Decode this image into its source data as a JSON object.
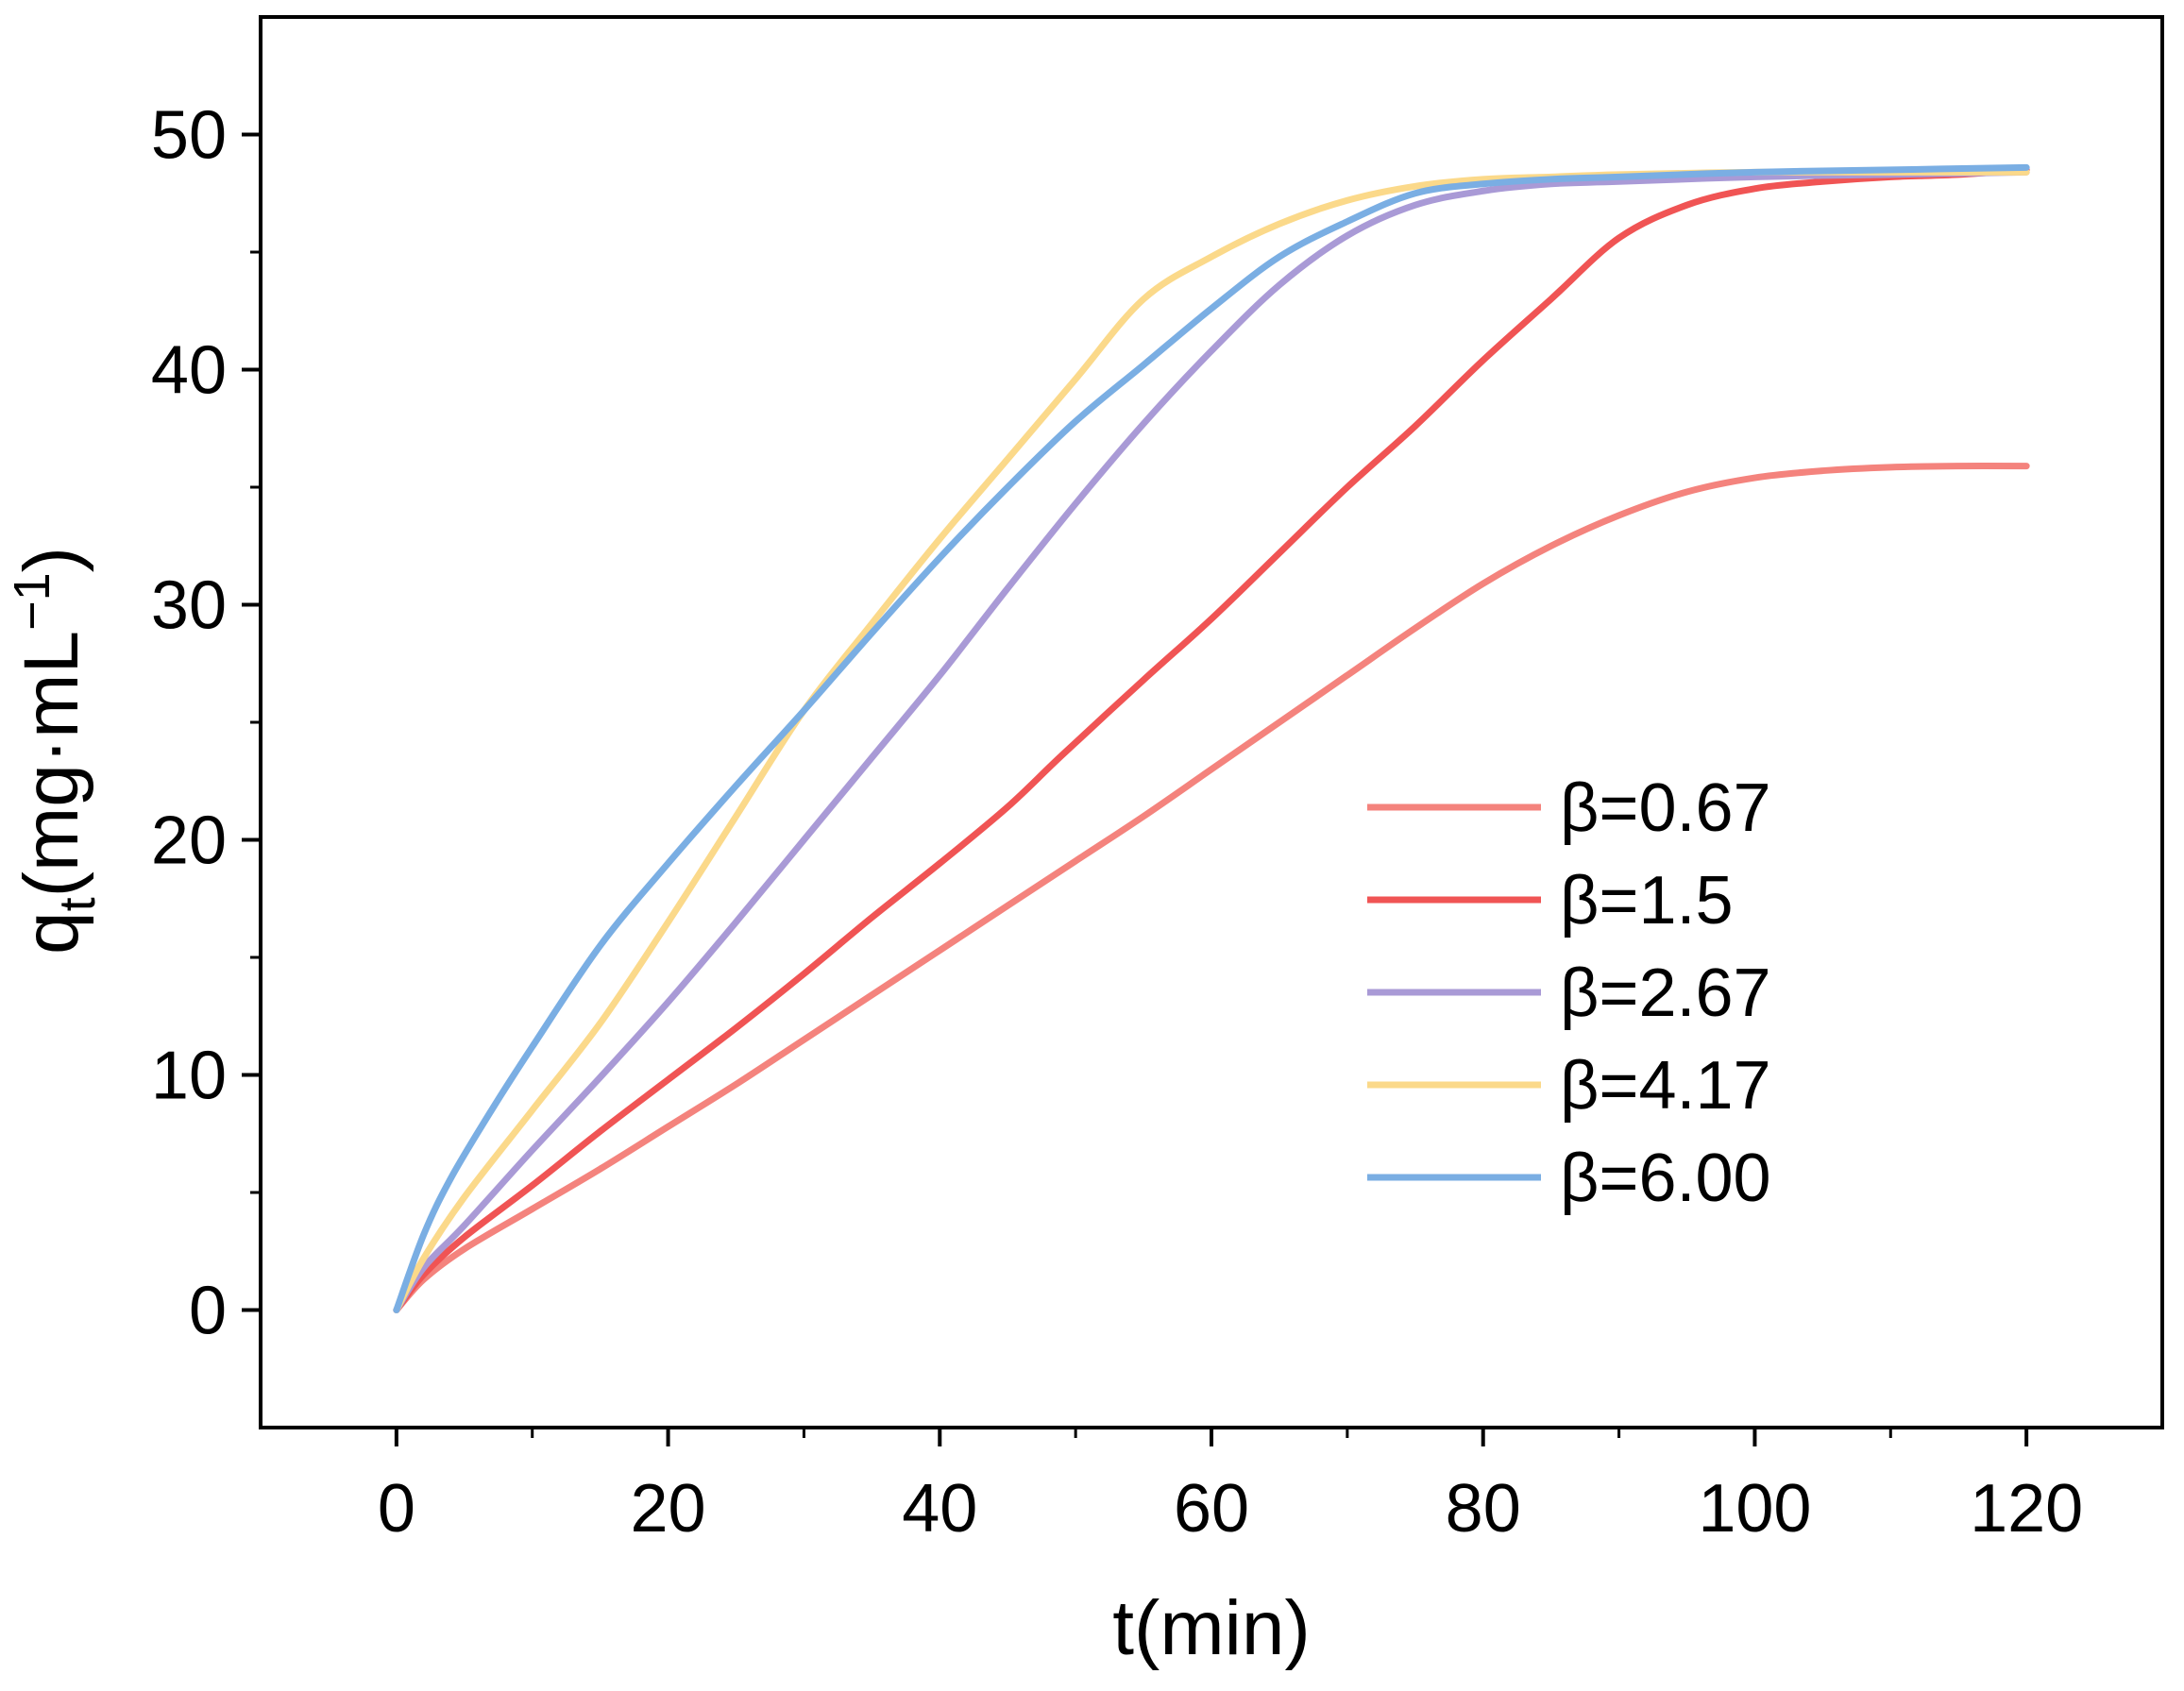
{
  "chart_data": {
    "type": "line",
    "title": "",
    "xlabel": "t(min)",
    "ylabel": {
      "base": "q",
      "sub": "t",
      "rest": "(mg·mL",
      "sup": "−1",
      "close": ")"
    },
    "xlim": [
      -10,
      130
    ],
    "ylim": [
      -5,
      55
    ],
    "xticks": [
      0,
      20,
      40,
      60,
      80,
      100,
      120
    ],
    "yticks": [
      0,
      10,
      20,
      30,
      40,
      50
    ],
    "grid": false,
    "legend_position": "center-right",
    "series": [
      {
        "name": "β=0.67",
        "color": "#F4837D",
        "x": [
          0,
          2,
          5,
          10,
          15,
          20,
          25,
          30,
          35,
          40,
          45,
          50,
          55,
          60,
          65,
          70,
          75,
          80,
          85,
          90,
          95,
          100,
          105,
          110,
          115,
          120
        ],
        "y": [
          0,
          1.3,
          2.6,
          4.3,
          6.0,
          7.8,
          9.6,
          11.5,
          13.4,
          15.3,
          17.2,
          19.1,
          21.0,
          23.0,
          25.0,
          27.0,
          29.0,
          30.9,
          32.5,
          33.8,
          34.8,
          35.4,
          35.7,
          35.85,
          35.9,
          35.9
        ]
      },
      {
        "name": "β=1.5",
        "color": "#F05454",
        "x": [
          0,
          2,
          5,
          10,
          15,
          20,
          25,
          30,
          35,
          40,
          45,
          49,
          55,
          60,
          65,
          70,
          75,
          80,
          85,
          90,
          95,
          100,
          105,
          110,
          115,
          120
        ],
        "y": [
          0,
          1.5,
          3.1,
          5.3,
          7.6,
          9.8,
          12.0,
          14.3,
          16.7,
          19.0,
          21.4,
          23.6,
          26.8,
          29.4,
          32.2,
          35.0,
          37.6,
          40.4,
          43.0,
          45.6,
          47.0,
          47.7,
          48.0,
          48.2,
          48.3,
          48.5
        ]
      },
      {
        "name": "β=2.67",
        "color": "#A99AD6",
        "x": [
          0,
          2,
          5,
          10,
          15,
          20,
          25,
          30,
          35,
          40,
          45,
          50,
          55,
          60,
          65,
          70,
          75,
          80,
          85,
          90,
          100,
          110,
          120
        ],
        "y": [
          0,
          1.8,
          3.6,
          6.8,
          9.9,
          13.1,
          16.5,
          20.0,
          23.5,
          27.0,
          30.7,
          34.3,
          37.7,
          40.8,
          43.6,
          45.7,
          47.0,
          47.6,
          47.9,
          48.0,
          48.2,
          48.3,
          48.4
        ]
      },
      {
        "name": "β=4.17",
        "color": "#FBD98A",
        "x": [
          0,
          2,
          5,
          10,
          15,
          20,
          25,
          30,
          35,
          40,
          45,
          50,
          55,
          60,
          65,
          70,
          75,
          80,
          85,
          90,
          100,
          110,
          120
        ],
        "y": [
          0,
          2.2,
          4.8,
          8.5,
          12.2,
          16.5,
          21.0,
          25.5,
          29.2,
          32.8,
          36.2,
          39.6,
          43.0,
          44.8,
          46.2,
          47.2,
          47.8,
          48.1,
          48.2,
          48.3,
          48.4,
          48.4,
          48.4
        ]
      },
      {
        "name": "β=6.00",
        "color": "#7AAEE3",
        "x": [
          0,
          2,
          4,
          7,
          10,
          15,
          20,
          25,
          30,
          35,
          40,
          45,
          50,
          55,
          60,
          65,
          70,
          75,
          80,
          85,
          90,
          100,
          110,
          120
        ],
        "y": [
          0,
          3.2,
          5.6,
          8.5,
          11.2,
          15.5,
          19.0,
          22.3,
          25.5,
          28.8,
          32.0,
          35.0,
          37.8,
          40.2,
          42.6,
          44.8,
          46.3,
          47.5,
          47.9,
          48.1,
          48.2,
          48.4,
          48.5,
          48.6
        ]
      }
    ]
  }
}
